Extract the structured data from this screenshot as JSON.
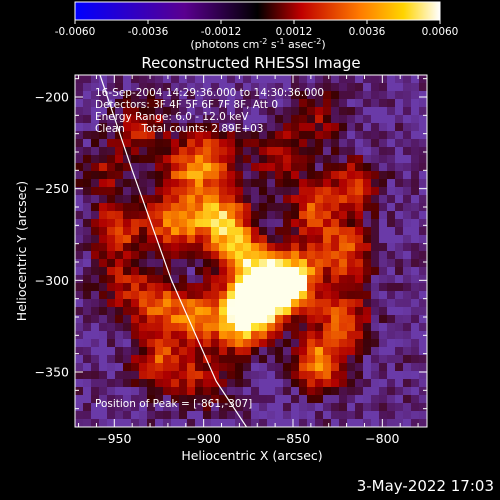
{
  "colorbar": {
    "ticks": [
      "-0.0060",
      "-0.0036",
      "-0.0012",
      "0.0012",
      "0.0036",
      "0.0060"
    ],
    "unit_prefix": "(photons cm",
    "unit_sup1": "-2",
    "unit_mid": " s",
    "unit_sup2": "-1",
    "unit_mid2": " asec",
    "unit_sup3": "-2",
    "unit_suffix": ")"
  },
  "chart_data": {
    "type": "heatmap",
    "title": "Reconstructed RHESSI Image",
    "xlabel": "Heliocentric X (arcsec)",
    "ylabel": "Heliocentric Y (arcsec)",
    "xlim": [
      -972,
      -775
    ],
    "ylim": [
      -380,
      -188
    ],
    "xticks": [
      -950,
      -900,
      -850,
      -800
    ],
    "yticks": [
      -200,
      -250,
      -300,
      -350
    ],
    "colorscale_range": [
      -0.006,
      0.006
    ],
    "colorscale": [
      "#0000ff",
      "#5a0090",
      "#000000",
      "#cc0000",
      "#ff7a00",
      "#ffd400",
      "#ffffff"
    ],
    "background": "#6a3aa8",
    "annotations": [
      "16-Sep-2004 14:29:36.000 to 14:30:36.000",
      "Detectors: 3F 4F 5F 6F 7F 8F, Att 0",
      "Energy Range: 6.0 - 12.0 keV",
      "Clean     Total counts: 2.89E+03"
    ],
    "peak_label": "Position of Peak = [-861,-307]",
    "peak": [
      -861,
      -307
    ],
    "limb_line": [
      [
        -958,
        -188
      ],
      [
        -940,
        -240
      ],
      [
        -918,
        -300
      ],
      [
        -893,
        -355
      ],
      [
        -876,
        -380
      ]
    ],
    "sources": [
      {
        "x": -862,
        "y": -305,
        "v": 1.0
      },
      {
        "x": -872,
        "y": -312,
        "v": 0.85
      },
      {
        "x": -850,
        "y": -298,
        "v": 0.8
      },
      {
        "x": -880,
        "y": -325,
        "v": 0.65
      },
      {
        "x": -905,
        "y": -320,
        "v": 0.6
      },
      {
        "x": -928,
        "y": -312,
        "v": 0.55
      },
      {
        "x": -915,
        "y": -268,
        "v": 0.7
      },
      {
        "x": -890,
        "y": -265,
        "v": 0.75
      },
      {
        "x": -880,
        "y": -285,
        "v": 0.7
      },
      {
        "x": -895,
        "y": -232,
        "v": 0.5
      },
      {
        "x": -935,
        "y": -215,
        "v": 0.45
      },
      {
        "x": -948,
        "y": -272,
        "v": 0.55
      },
      {
        "x": -925,
        "y": -345,
        "v": 0.55
      },
      {
        "x": -900,
        "y": -355,
        "v": 0.4
      },
      {
        "x": -835,
        "y": -345,
        "v": 0.7
      },
      {
        "x": -822,
        "y": -320,
        "v": 0.6
      },
      {
        "x": -820,
        "y": -285,
        "v": 0.6
      },
      {
        "x": -838,
        "y": -262,
        "v": 0.55
      },
      {
        "x": -815,
        "y": -248,
        "v": 0.5
      },
      {
        "x": -858,
        "y": -232,
        "v": 0.45
      },
      {
        "x": -835,
        "y": -210,
        "v": 0.35
      },
      {
        "x": -910,
        "y": -240,
        "v": 0.5
      },
      {
        "x": -950,
        "y": -300,
        "v": 0.35
      },
      {
        "x": -955,
        "y": -240,
        "v": 0.35
      }
    ]
  },
  "timestamp": "3-May-2022 17:03"
}
